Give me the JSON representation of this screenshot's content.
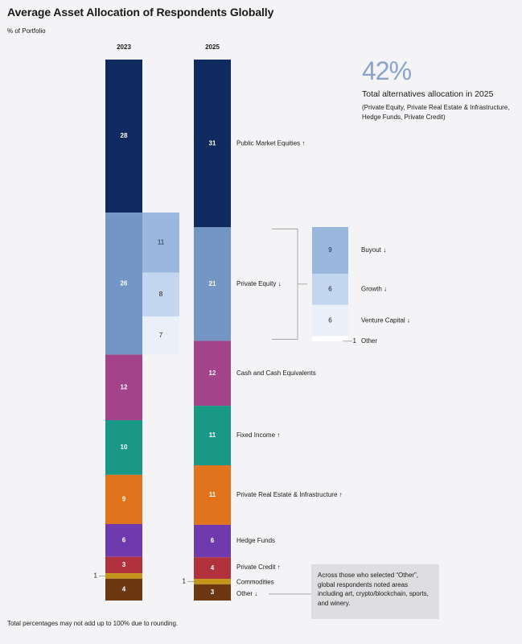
{
  "title": "Average Asset Allocation of Respondents Globally",
  "subtitle": "% of Portfolio",
  "footnote": "Total percentages may not add up to 100% due to rounding.",
  "headline": {
    "value": "42%",
    "label": "Total alternatives allocation in 2025",
    "note": "(Private Equity, Private Real Estate & Infrastructure, Hedge Funds, Private Credit)"
  },
  "note_box": "Across those who selected “Other”, global respondents noted areas including art, crypto/blockchain, sports, and winery.",
  "colors": {
    "public_market_equities": "#0e2a5e",
    "private_equity": "#7396c4",
    "pe_buyout": "#9ab7de",
    "pe_growth": "#c3d6ef",
    "pe_venture": "#e9f0fa",
    "cash": "#a3438a",
    "fixed_income": "#1a9886",
    "real_estate": "#e0731c",
    "hedge_funds": "#6f3aad",
    "private_credit": "#b1323c",
    "commodities": "#c4941a",
    "other": "#6b3812"
  },
  "chart_data": {
    "type": "bar",
    "stacked": true,
    "categories": [
      "2023",
      "2025"
    ],
    "series": [
      {
        "name": "Public Market Equities",
        "trend": "↑",
        "values": [
          28,
          31
        ]
      },
      {
        "name": "Private Equity",
        "trend": "↓",
        "values": [
          26,
          21
        ]
      },
      {
        "name": "Cash and Cash Equivalents",
        "trend": "",
        "values": [
          12,
          12
        ]
      },
      {
        "name": "Fixed Income",
        "trend": "↑",
        "values": [
          10,
          11
        ]
      },
      {
        "name": "Private Real Estate & Infrastructure",
        "trend": "↑",
        "values": [
          9,
          11
        ]
      },
      {
        "name": "Hedge Funds",
        "trend": "",
        "values": [
          6,
          6
        ]
      },
      {
        "name": "Private Credit",
        "trend": "↑",
        "values": [
          3,
          4
        ]
      },
      {
        "name": "Commodities",
        "trend": "",
        "values": [
          1,
          1
        ]
      },
      {
        "name": "Other",
        "trend": "↓",
        "values": [
          4,
          3
        ]
      }
    ],
    "private_equity_breakdown": {
      "2023": [
        {
          "name": "Buyout",
          "value": 11
        },
        {
          "name": "Growth",
          "value": 8
        },
        {
          "name": "Venture Capital",
          "value": 7
        }
      ],
      "2025": [
        {
          "name": "Buyout",
          "trend": "↓",
          "value": 9
        },
        {
          "name": "Growth",
          "trend": "↓",
          "value": 6
        },
        {
          "name": "Venture Capital",
          "trend": "↓",
          "value": 6
        },
        {
          "name": "Other",
          "trend": "",
          "value": 1
        }
      ]
    }
  }
}
